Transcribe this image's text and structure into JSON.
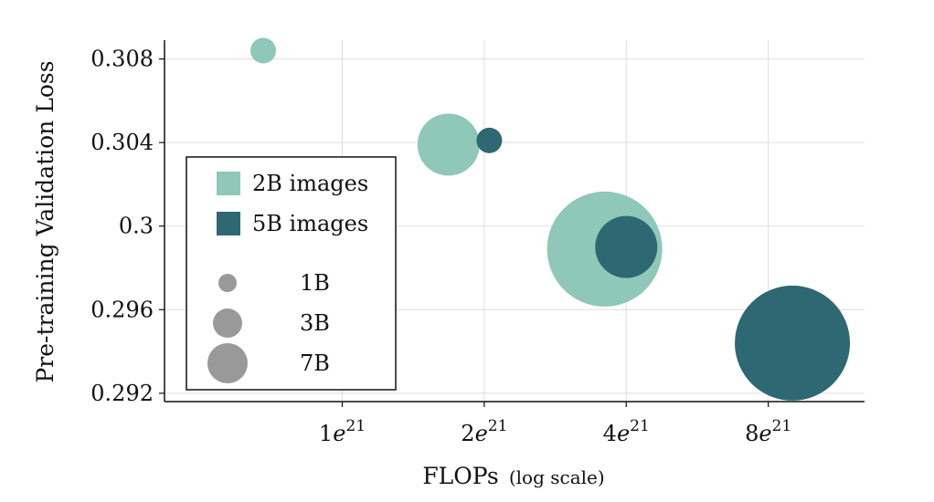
{
  "chart_data": {
    "type": "scatter",
    "subtype": "bubble",
    "title": "",
    "ylabel": "Pre-training Validation Loss",
    "xlabel": "FLOPs",
    "xlabel_note": "(log scale)",
    "x_scale": "log",
    "x_ticks": [
      {
        "value": 1e+21,
        "mantissa": "1",
        "base": "e",
        "exp": "21"
      },
      {
        "value": 2e+21,
        "mantissa": "2",
        "base": "e",
        "exp": "21"
      },
      {
        "value": 4e+21,
        "mantissa": "4",
        "base": "e",
        "exp": "21"
      },
      {
        "value": 8e+21,
        "mantissa": "8",
        "base": "e",
        "exp": "21"
      }
    ],
    "y_ticks": [
      {
        "value": 0.292,
        "label": "0.292"
      },
      {
        "value": 0.296,
        "label": "0.296"
      },
      {
        "value": 0.3,
        "label": "0.3"
      },
      {
        "value": 0.304,
        "label": "0.304"
      },
      {
        "value": 0.308,
        "label": "0.308"
      }
    ],
    "xlim": [
      4.2e+20,
      1.28e+22
    ],
    "ylim": [
      0.2916,
      0.3089
    ],
    "grid": true,
    "legend_position": "left",
    "series": [
      {
        "name": "2B images",
        "color": "#8fc7b8",
        "points": [
          {
            "flops": 6.8e+20,
            "loss": 0.3084,
            "size": "1B"
          },
          {
            "flops": 1.68e+21,
            "loss": 0.3039,
            "size": "3B"
          },
          {
            "flops": 3.6e+21,
            "loss": 0.2989,
            "size": "7B"
          }
        ]
      },
      {
        "name": "5B images",
        "color": "#2e6873",
        "points": [
          {
            "flops": 2.05e+21,
            "loss": 0.3041,
            "size": "1B"
          },
          {
            "flops": 4e+21,
            "loss": 0.299,
            "size": "3B"
          },
          {
            "flops": 9e+21,
            "loss": 0.2944,
            "size": "7B"
          }
        ]
      }
    ],
    "size_legend": {
      "color": "#999999",
      "items": [
        {
          "label": "1B"
        },
        {
          "label": "3B"
        },
        {
          "label": "7B"
        }
      ]
    }
  }
}
